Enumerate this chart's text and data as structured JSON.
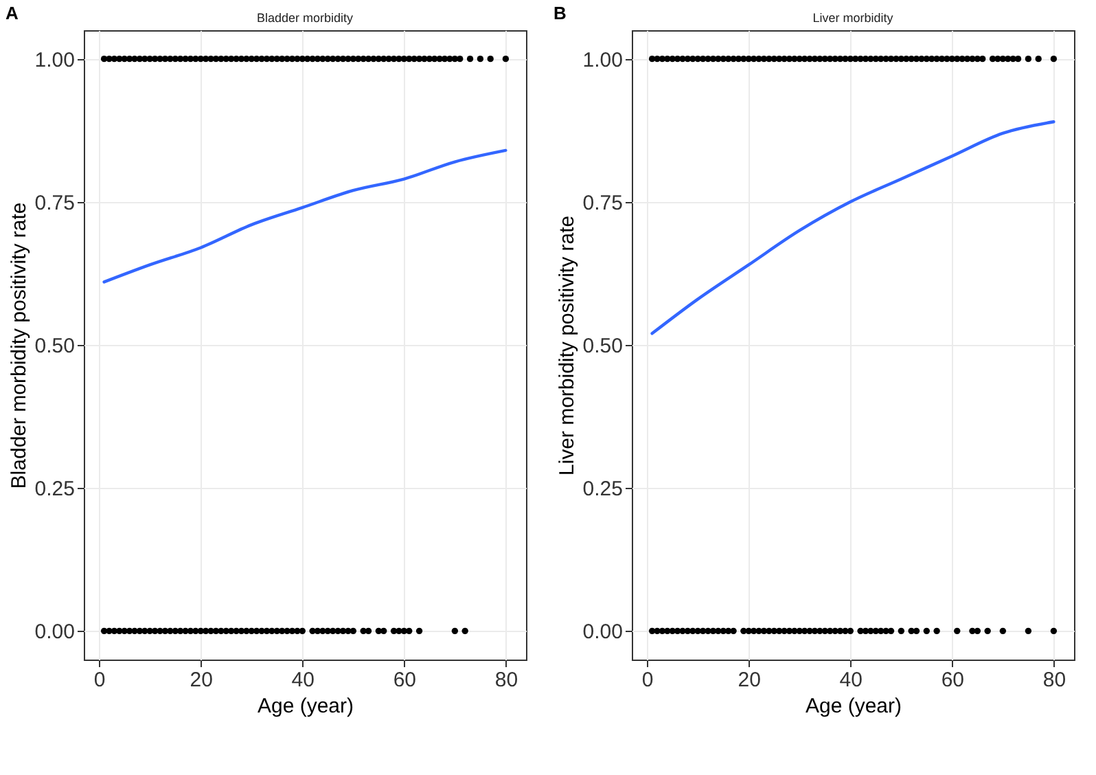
{
  "chart_data": [
    {
      "type": "scatter",
      "title": "Bladder morbidity",
      "xlabel": "Age (year)",
      "ylabel": "Bladder morbidity positivity rate",
      "annotations": [
        "A"
      ],
      "xlim": [
        -3,
        84
      ],
      "ylim": [
        -0.05,
        1.05
      ],
      "xticks": [
        0,
        20,
        40,
        60,
        80
      ],
      "yticks": [
        {
          "value": 0,
          "label": "0.00"
        },
        {
          "value": 0.25,
          "label": "0.25"
        },
        {
          "value": 0.5,
          "label": "0.50"
        },
        {
          "value": 0.75,
          "label": "0.75"
        },
        {
          "value": 1,
          "label": "1.00"
        }
      ],
      "grid": true,
      "series": [
        {
          "color": "#000000",
          "marker": "circle",
          "x": [
            1,
            2,
            3,
            4,
            5,
            6,
            7,
            8,
            9,
            10,
            11,
            12,
            13,
            14,
            15,
            16,
            17,
            18,
            19,
            20,
            21,
            22,
            23,
            24,
            25,
            26,
            27,
            28,
            29,
            30,
            31,
            32,
            33,
            34,
            35,
            36,
            37,
            38,
            39,
            40,
            41,
            42,
            43,
            44,
            45,
            46,
            47,
            48,
            49,
            50,
            51,
            52,
            53,
            54,
            55,
            56,
            57,
            58,
            59,
            60,
            61,
            62,
            63,
            64,
            65,
            66,
            67,
            68,
            69,
            70,
            71,
            73,
            75,
            77,
            80
          ],
          "values": [
            1,
            1,
            1,
            1,
            1,
            1,
            1,
            1,
            1,
            1,
            1,
            1,
            1,
            1,
            1,
            1,
            1,
            1,
            1,
            1,
            1,
            1,
            1,
            1,
            1,
            1,
            1,
            1,
            1,
            1,
            1,
            1,
            1,
            1,
            1,
            1,
            1,
            1,
            1,
            1,
            1,
            1,
            1,
            1,
            1,
            1,
            1,
            1,
            1,
            1,
            1,
            1,
            1,
            1,
            1,
            1,
            1,
            1,
            1,
            1,
            1,
            1,
            1,
            1,
            1,
            1,
            1,
            1,
            1,
            1,
            1,
            1,
            1,
            1,
            1
          ]
        },
        {
          "color": "#000000",
          "marker": "circle",
          "x": [
            1,
            2,
            3,
            4,
            5,
            6,
            7,
            8,
            9,
            10,
            11,
            12,
            13,
            14,
            15,
            16,
            17,
            18,
            19,
            20,
            21,
            22,
            23,
            24,
            25,
            26,
            27,
            28,
            29,
            30,
            31,
            32,
            33,
            34,
            35,
            36,
            37,
            38,
            39,
            40,
            42,
            43,
            44,
            45,
            46,
            47,
            48,
            49,
            50,
            52,
            53,
            55,
            56,
            58,
            59,
            60,
            61,
            63,
            70,
            72
          ],
          "values": [
            0,
            0,
            0,
            0,
            0,
            0,
            0,
            0,
            0,
            0,
            0,
            0,
            0,
            0,
            0,
            0,
            0,
            0,
            0,
            0,
            0,
            0,
            0,
            0,
            0,
            0,
            0,
            0,
            0,
            0,
            0,
            0,
            0,
            0,
            0,
            0,
            0,
            0,
            0,
            0,
            0,
            0,
            0,
            0,
            0,
            0,
            0,
            0,
            0,
            0,
            0,
            0,
            0,
            0,
            0,
            0,
            0,
            0,
            0,
            0
          ]
        },
        {
          "type": "line",
          "color": "#3366ff",
          "marker": "none",
          "x": [
            1,
            10,
            20,
            30,
            40,
            50,
            60,
            70,
            80
          ],
          "values": [
            0.61,
            0.64,
            0.67,
            0.71,
            0.74,
            0.77,
            0.79,
            0.82,
            0.84
          ]
        }
      ]
    },
    {
      "type": "scatter",
      "title": "Liver morbidity",
      "xlabel": "Age (year)",
      "ylabel": "Liver morbidity positivity rate",
      "annotations": [
        "B"
      ],
      "xlim": [
        -3,
        84
      ],
      "ylim": [
        -0.05,
        1.05
      ],
      "xticks": [
        0,
        20,
        40,
        60,
        80
      ],
      "yticks": [
        {
          "value": 0,
          "label": "0.00"
        },
        {
          "value": 0.25,
          "label": "0.25"
        },
        {
          "value": 0.5,
          "label": "0.50"
        },
        {
          "value": 0.75,
          "label": "0.75"
        },
        {
          "value": 1,
          "label": "1.00"
        }
      ],
      "grid": true,
      "series": [
        {
          "color": "#000000",
          "marker": "circle",
          "x": [
            1,
            2,
            3,
            4,
            5,
            6,
            7,
            8,
            9,
            10,
            11,
            12,
            13,
            14,
            15,
            16,
            17,
            18,
            19,
            20,
            21,
            22,
            23,
            24,
            25,
            26,
            27,
            28,
            29,
            30,
            31,
            32,
            33,
            34,
            35,
            36,
            37,
            38,
            39,
            40,
            41,
            42,
            43,
            44,
            45,
            46,
            47,
            48,
            49,
            50,
            51,
            52,
            53,
            54,
            55,
            56,
            57,
            58,
            59,
            60,
            61,
            62,
            63,
            64,
            65,
            66,
            68,
            69,
            70,
            71,
            72,
            73,
            75,
            77,
            80
          ],
          "values": [
            1,
            1,
            1,
            1,
            1,
            1,
            1,
            1,
            1,
            1,
            1,
            1,
            1,
            1,
            1,
            1,
            1,
            1,
            1,
            1,
            1,
            1,
            1,
            1,
            1,
            1,
            1,
            1,
            1,
            1,
            1,
            1,
            1,
            1,
            1,
            1,
            1,
            1,
            1,
            1,
            1,
            1,
            1,
            1,
            1,
            1,
            1,
            1,
            1,
            1,
            1,
            1,
            1,
            1,
            1,
            1,
            1,
            1,
            1,
            1,
            1,
            1,
            1,
            1,
            1,
            1,
            1,
            1,
            1,
            1,
            1,
            1,
            1,
            1,
            1
          ]
        },
        {
          "color": "#000000",
          "marker": "circle",
          "x": [
            1,
            2,
            3,
            4,
            5,
            6,
            7,
            8,
            9,
            10,
            11,
            12,
            13,
            14,
            15,
            16,
            17,
            19,
            20,
            21,
            22,
            23,
            24,
            25,
            26,
            27,
            28,
            29,
            30,
            31,
            32,
            33,
            34,
            35,
            36,
            37,
            38,
            39,
            40,
            42,
            43,
            44,
            45,
            46,
            47,
            48,
            50,
            52,
            53,
            55,
            57,
            61,
            64,
            65,
            67,
            70,
            75,
            80
          ],
          "values": [
            0,
            0,
            0,
            0,
            0,
            0,
            0,
            0,
            0,
            0,
            0,
            0,
            0,
            0,
            0,
            0,
            0,
            0,
            0,
            0,
            0,
            0,
            0,
            0,
            0,
            0,
            0,
            0,
            0,
            0,
            0,
            0,
            0,
            0,
            0,
            0,
            0,
            0,
            0,
            0,
            0,
            0,
            0,
            0,
            0,
            0,
            0,
            0,
            0,
            0,
            0,
            0,
            0,
            0,
            0,
            0,
            0,
            0
          ]
        },
        {
          "type": "line",
          "color": "#3366ff",
          "marker": "none",
          "x": [
            1,
            10,
            20,
            30,
            40,
            50,
            60,
            70,
            80
          ],
          "values": [
            0.52,
            0.58,
            0.64,
            0.7,
            0.75,
            0.79,
            0.83,
            0.87,
            0.89
          ]
        }
      ]
    }
  ]
}
